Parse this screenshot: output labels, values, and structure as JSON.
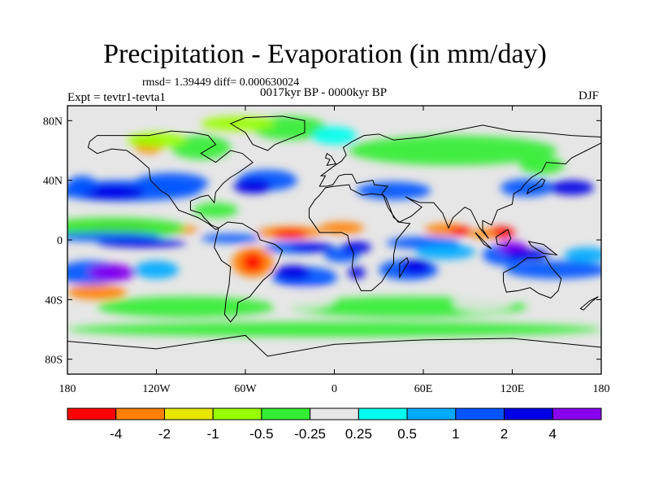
{
  "title": "Precipitation - Evaporation (in mm/day)",
  "stats": "rmsd= 1.39449 diff= 0.000630024",
  "experiment": "Expt = tevtr1-tevta1",
  "period": "0017kyr BP - 0000kyr BP",
  "season": "DJF",
  "map": {
    "lon_range": [
      -180,
      180
    ],
    "lat_range": [
      -90,
      90
    ],
    "y_ticks": [
      "80N",
      "40N",
      "0",
      "40S",
      "80S"
    ],
    "y_tick_values": [
      80,
      40,
      0,
      -40,
      -80
    ],
    "x_ticks": [
      "180",
      "120W",
      "60W",
      "0",
      "60E",
      "120E",
      "180"
    ],
    "x_tick_values": [
      -180,
      -120,
      -60,
      0,
      60,
      120,
      180
    ],
    "background_color": "#e6e6e6"
  },
  "colorbar": {
    "colors": [
      "#ff0000",
      "#ff8000",
      "#e6e600",
      "#99ff00",
      "#33ee33",
      "#e6e6e6",
      "#00ffee",
      "#00aaff",
      "#0055ff",
      "#0000e6",
      "#8800ee"
    ],
    "labels": [
      "-4",
      "-2",
      "-1",
      "-0.5",
      "-0.25",
      "0.25",
      "0.5",
      "1",
      "2",
      "4"
    ]
  }
}
